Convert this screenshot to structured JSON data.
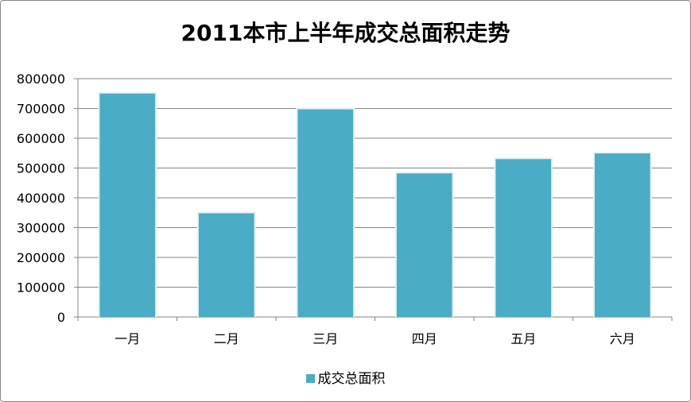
{
  "chart_data": {
    "type": "bar",
    "title": "2011本市上半年成交总面积走势",
    "categories": [
      "一月",
      "二月",
      "三月",
      "四月",
      "五月",
      "六月"
    ],
    "series": [
      {
        "name": "成交总面积",
        "values": [
          750000,
          348000,
          697000,
          482000,
          530000,
          549000
        ],
        "color": "#4BACC6"
      }
    ],
    "ylim": [
      0,
      800000
    ],
    "yticks": [
      "0",
      "100000",
      "200000",
      "300000",
      "400000",
      "500000",
      "600000",
      "700000",
      "800000"
    ],
    "grid": true,
    "legend_position": "bottom"
  }
}
